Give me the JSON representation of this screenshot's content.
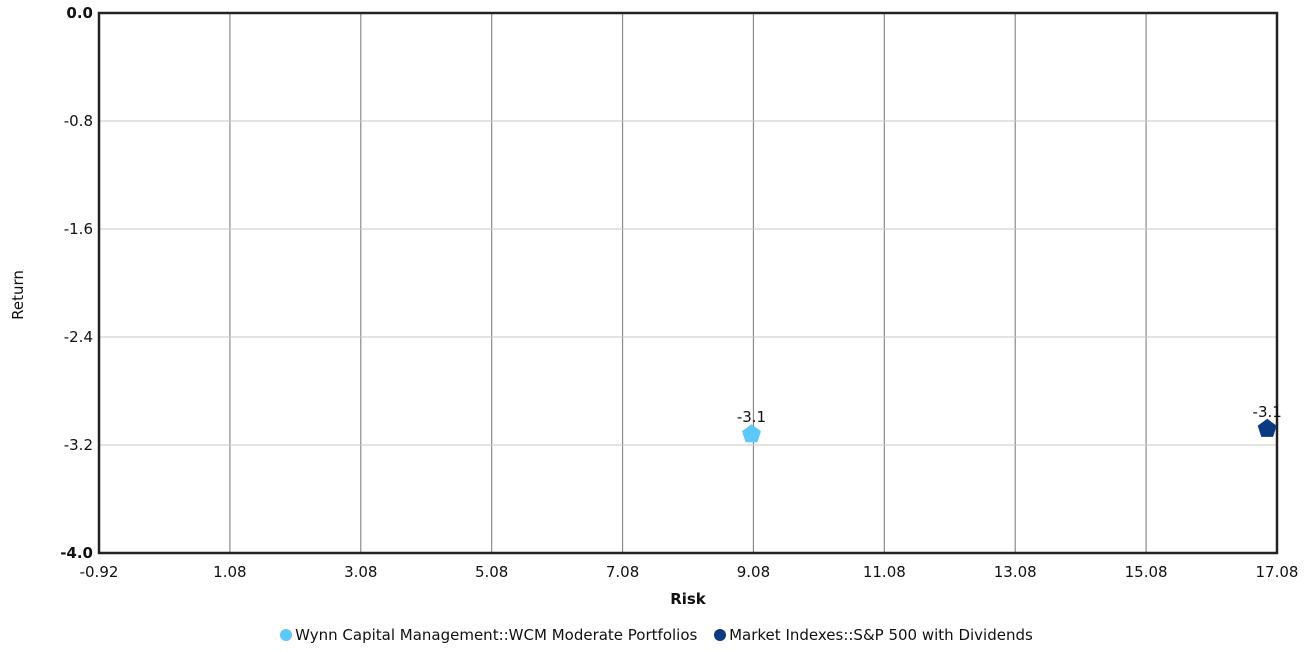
{
  "chart_data": {
    "type": "scatter",
    "xlabel": "Risk",
    "ylabel": "Return",
    "xlim": [
      -0.92,
      17.08
    ],
    "ylim": [
      -4.0,
      0.0
    ],
    "x_ticks": [
      "-0.92",
      "1.08",
      "3.08",
      "5.08",
      "7.08",
      "9.08",
      "11.08",
      "13.08",
      "15.08",
      "17.08"
    ],
    "y_ticks": [
      "0.0",
      "-0.8",
      "-1.6",
      "-2.4",
      "-3.2",
      "-4.0"
    ],
    "grid": true,
    "legend_position": "bottom",
    "series": [
      {
        "name": "Wynn Capital Management::WCM Moderate Portfolios",
        "color": "#5ec8f8",
        "points": [
          {
            "x": 9.05,
            "y": -3.12,
            "label": "-3.1"
          }
        ]
      },
      {
        "name": "Market Indexes::S&P 500 with Dividends",
        "color": "#0b3a80",
        "points": [
          {
            "x": 16.93,
            "y": -3.08,
            "label": "-3.1"
          }
        ]
      }
    ]
  }
}
